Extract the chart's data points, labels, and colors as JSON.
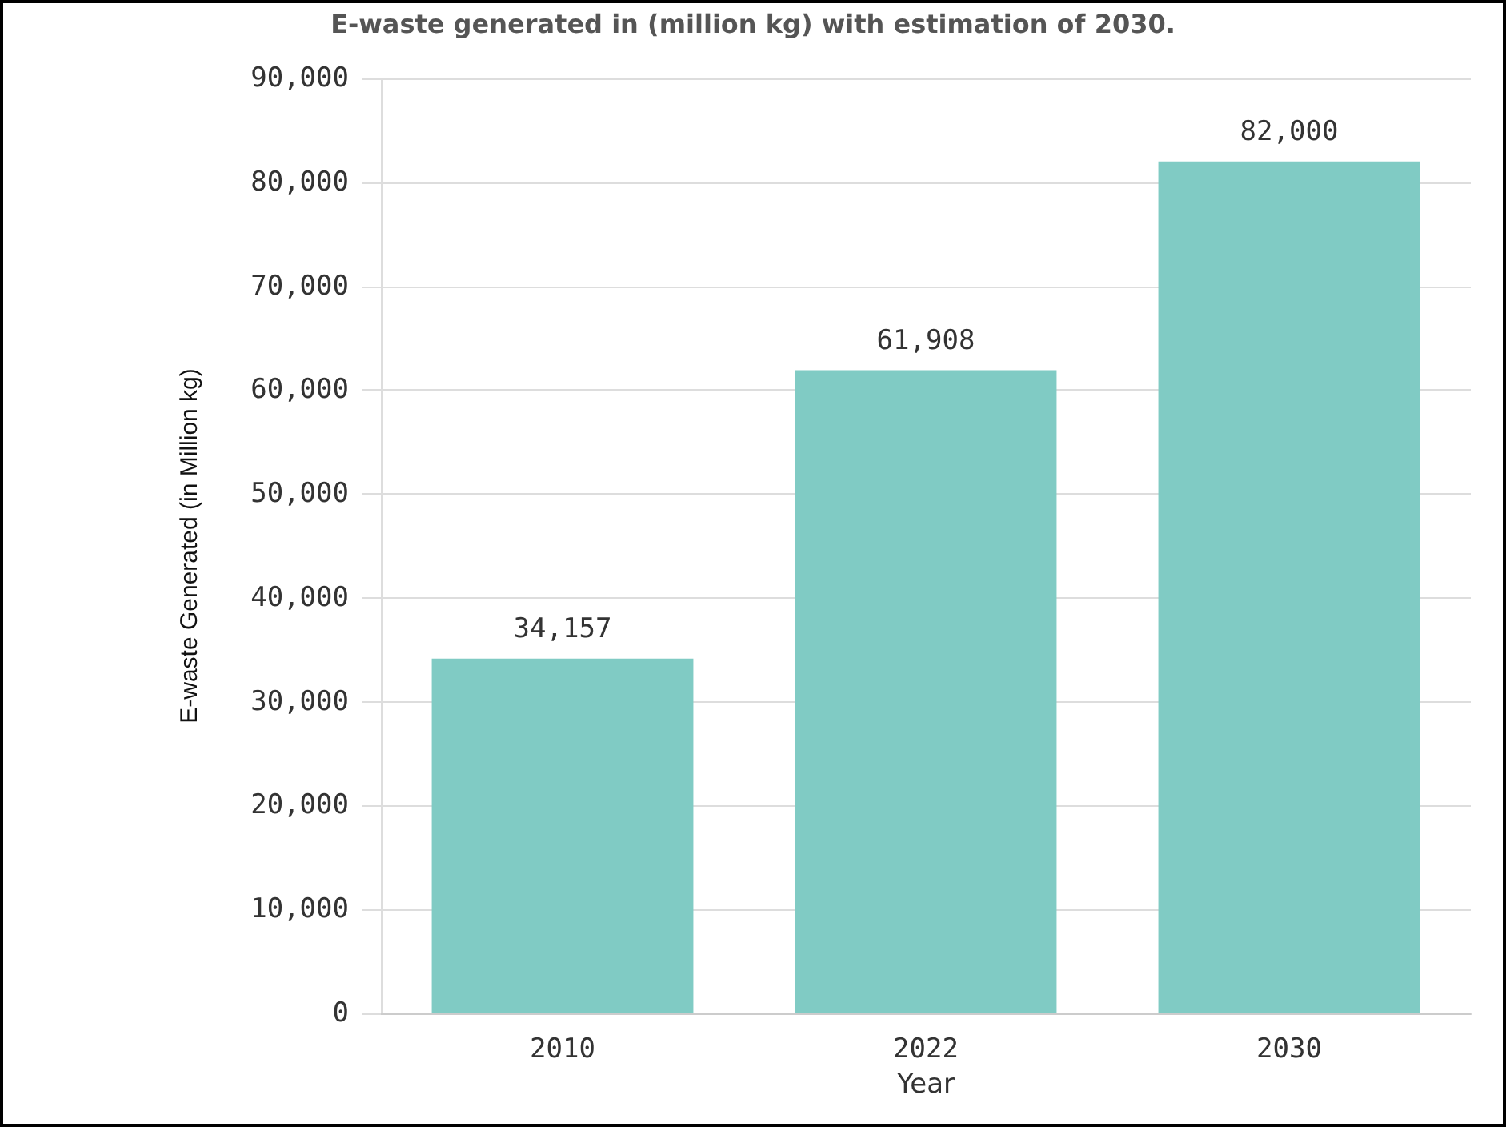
{
  "chart_data": {
    "type": "bar",
    "title": "E-waste generated in (million kg) with estimation of 2030.",
    "xlabel": "Year",
    "ylabel": "E-waste Generated (in Million kg)",
    "categories": [
      "2010",
      "2022",
      "2030"
    ],
    "series": [
      {
        "color": "#80cbc4",
        "values": [
          34157,
          61908,
          82000
        ],
        "value_labels": [
          "34,157",
          "61,908",
          "82,000"
        ]
      }
    ],
    "ylim": [
      0,
      90000
    ],
    "yticks": [
      0,
      {
        "value": 10000,
        "label": "10,000"
      },
      {
        "value": 20000,
        "label": "20,000"
      },
      {
        "value": 30000,
        "label": "30,000"
      },
      {
        "value": 40000,
        "label": "40,000"
      },
      {
        "value": 50000,
        "label": "50,000"
      },
      {
        "value": 60000,
        "label": "60,000"
      },
      {
        "value": 70000,
        "label": "70,000"
      },
      {
        "value": 80000,
        "label": "80,000"
      },
      {
        "value": 90000,
        "label": "90,000"
      }
    ],
    "grid": "y"
  }
}
